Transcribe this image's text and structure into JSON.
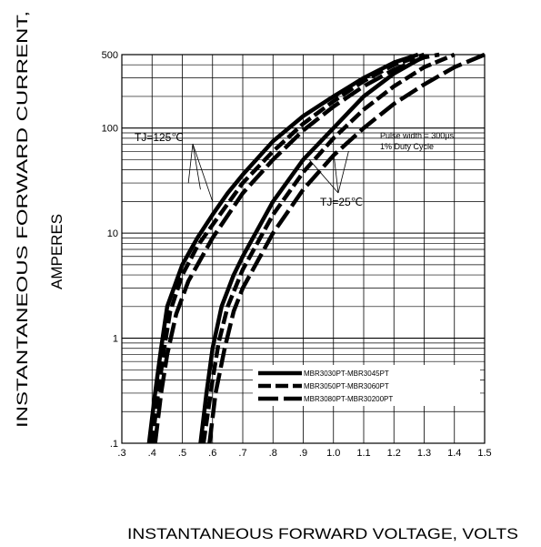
{
  "chart_data": {
    "type": "line",
    "title": "",
    "xlabel": "INSTANTANEOUS FORWARD VOLTAGE,  VOLTS",
    "ylabel_lines": [
      "INSTANTANEOUS FORWARD CURRENT,",
      "AMPERES"
    ],
    "xlim": [
      0.3,
      1.5
    ],
    "ylim": [
      0.1,
      500
    ],
    "yscale": "log",
    "grid": true,
    "x_ticks": [
      0.3,
      0.4,
      0.5,
      0.6,
      0.7,
      0.8,
      0.9,
      1.0,
      1.1,
      1.2,
      1.3,
      1.4,
      1.5
    ],
    "x_tick_labels": [
      ".3",
      ".4",
      ".5",
      ".6",
      ".7",
      ".8",
      ".9",
      "1.0",
      "1.1",
      "1.2",
      "1.3",
      "1.4",
      "1.5"
    ],
    "y_ticks": [
      0.1,
      1,
      10,
      100,
      500
    ],
    "y_tick_labels": [
      ".1",
      "1",
      "10",
      "100",
      "500"
    ],
    "annotations": {
      "tj125": "TJ=125℃",
      "tj25": "TJ=25℃",
      "pulse_width": "Pulse width = 300μs",
      "duty_cycle": "1% Duty Cycle"
    },
    "legend_position": "lower-right",
    "series": [
      {
        "name": "MBR3030PT-MBR3045PT",
        "style": "solid",
        "curves": [
          {
            "label": "TJ=125℃",
            "x": [
              0.39,
              0.41,
              0.43,
              0.45,
              0.5,
              0.55,
              0.6,
              0.65,
              0.7,
              0.8,
              0.9,
              1.0,
              1.1,
              1.2,
              1.28
            ],
            "y": [
              0.1,
              0.3,
              0.8,
              2,
              5,
              9,
              15,
              24,
              36,
              75,
              130,
              200,
              300,
              420,
              500
            ]
          },
          {
            "label": "TJ=25℃",
            "x": [
              0.56,
              0.58,
              0.6,
              0.63,
              0.67,
              0.7,
              0.8,
              0.9,
              1.0,
              1.1,
              1.2,
              1.3
            ],
            "y": [
              0.1,
              0.3,
              0.8,
              2,
              4,
              6,
              20,
              50,
              100,
              200,
              330,
              480
            ]
          }
        ]
      },
      {
        "name": "MBR3050PT-MBR3060PT",
        "style": "dash",
        "curves": [
          {
            "label": "TJ=125℃",
            "x": [
              0.4,
              0.42,
              0.44,
              0.46,
              0.5,
              0.55,
              0.6,
              0.7,
              0.8,
              0.9,
              1.0,
              1.1,
              1.2,
              1.3
            ],
            "y": [
              0.1,
              0.3,
              0.8,
              1.8,
              4,
              7.5,
              12,
              30,
              60,
              110,
              180,
              280,
              400,
              500
            ]
          },
          {
            "label": "TJ=25℃",
            "x": [
              0.57,
              0.6,
              0.62,
              0.65,
              0.7,
              0.8,
              0.9,
              1.0,
              1.1,
              1.2,
              1.3,
              1.4
            ],
            "y": [
              0.1,
              0.4,
              0.9,
              2,
              4.5,
              15,
              38,
              80,
              150,
              250,
              380,
              500
            ]
          }
        ]
      },
      {
        "name": "MBR3080PT-MBR30200PT",
        "style": "longdash",
        "curves": [
          {
            "label": "TJ=125℃",
            "x": [
              0.41,
              0.43,
              0.45,
              0.48,
              0.52,
              0.6,
              0.7,
              0.8,
              0.9,
              1.0,
              1.1,
              1.2,
              1.3,
              1.35
            ],
            "y": [
              0.1,
              0.3,
              0.7,
              1.7,
              3.5,
              9,
              24,
              50,
              95,
              160,
              250,
              360,
              470,
              500
            ]
          },
          {
            "label": "TJ=25℃",
            "x": [
              0.59,
              0.61,
              0.64,
              0.67,
              0.7,
              0.8,
              0.9,
              1.0,
              1.1,
              1.2,
              1.3,
              1.4,
              1.5
            ],
            "y": [
              0.1,
              0.3,
              0.8,
              1.8,
              3,
              10,
              26,
              55,
              100,
              170,
              260,
              380,
              500
            ]
          }
        ]
      }
    ]
  }
}
